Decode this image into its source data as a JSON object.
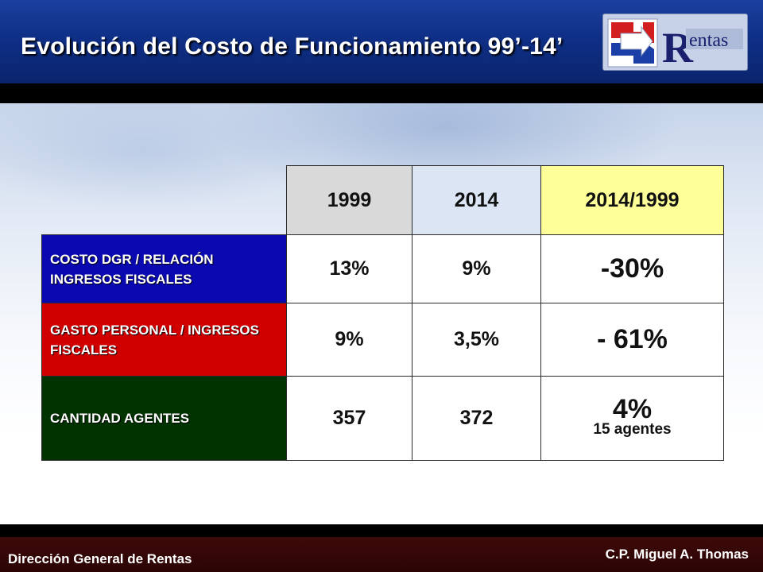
{
  "header": {
    "title": "Evolución del Costo de Funcionamiento 99’-14’",
    "logo_text": "entas",
    "logo_letter": "R",
    "colors": {
      "band": "#0f2f86",
      "title": "#ffffff"
    }
  },
  "table": {
    "columns": [
      "1999",
      "2014",
      "2014/1999"
    ],
    "rows": [
      {
        "label": "COSTO DGR / RELACIÓN INGRESOS FISCALES",
        "v1999": "13%",
        "v2014": "9%",
        "ratio": "-30%",
        "ratio_note": ""
      },
      {
        "label": "GASTO PERSONAL / INGRESOS FISCALES",
        "v1999": "9%",
        "v2014": "3,5%",
        "ratio": "- 61%",
        "ratio_note": ""
      },
      {
        "label": "CANTIDAD AGENTES",
        "v1999": "357",
        "v2014": "372",
        "ratio": "4%",
        "ratio_note": "15 agentes"
      }
    ],
    "colors": {
      "col1999": "#d9d9d9",
      "col2014": "#dbe5f3",
      "colRatio": "#ffff99",
      "row1": "#0a08b0",
      "row2": "#d00000",
      "row3": "#003300"
    }
  },
  "footer": {
    "left": "Dirección General de Rentas",
    "right": "C.P. Miguel A. Thomas",
    "color": "#3e0a0a"
  }
}
